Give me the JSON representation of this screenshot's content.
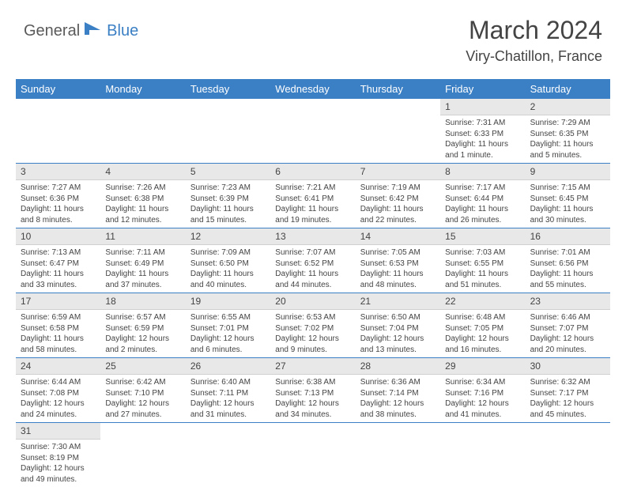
{
  "logo": {
    "part1": "General",
    "part2": "Blue"
  },
  "title": "March 2024",
  "location": "Viry-Chatillon, France",
  "dayNames": [
    "Sunday",
    "Monday",
    "Tuesday",
    "Wednesday",
    "Thursday",
    "Friday",
    "Saturday"
  ],
  "colors": {
    "headerBg": "#3b7fc4",
    "dayBg": "#e8e8e8",
    "ruleColor": "#3b7fc4",
    "text": "#444444",
    "logoGray": "#5a5a5a",
    "logoBlue": "#3b7fc4"
  },
  "weeks": [
    [
      {
        "n": "",
        "lines": []
      },
      {
        "n": "",
        "lines": []
      },
      {
        "n": "",
        "lines": []
      },
      {
        "n": "",
        "lines": []
      },
      {
        "n": "",
        "lines": []
      },
      {
        "n": "1",
        "lines": [
          "Sunrise: 7:31 AM",
          "Sunset: 6:33 PM",
          "Daylight: 11 hours",
          "and 1 minute."
        ]
      },
      {
        "n": "2",
        "lines": [
          "Sunrise: 7:29 AM",
          "Sunset: 6:35 PM",
          "Daylight: 11 hours",
          "and 5 minutes."
        ]
      }
    ],
    [
      {
        "n": "3",
        "lines": [
          "Sunrise: 7:27 AM",
          "Sunset: 6:36 PM",
          "Daylight: 11 hours",
          "and 8 minutes."
        ]
      },
      {
        "n": "4",
        "lines": [
          "Sunrise: 7:26 AM",
          "Sunset: 6:38 PM",
          "Daylight: 11 hours",
          "and 12 minutes."
        ]
      },
      {
        "n": "5",
        "lines": [
          "Sunrise: 7:23 AM",
          "Sunset: 6:39 PM",
          "Daylight: 11 hours",
          "and 15 minutes."
        ]
      },
      {
        "n": "6",
        "lines": [
          "Sunrise: 7:21 AM",
          "Sunset: 6:41 PM",
          "Daylight: 11 hours",
          "and 19 minutes."
        ]
      },
      {
        "n": "7",
        "lines": [
          "Sunrise: 7:19 AM",
          "Sunset: 6:42 PM",
          "Daylight: 11 hours",
          "and 22 minutes."
        ]
      },
      {
        "n": "8",
        "lines": [
          "Sunrise: 7:17 AM",
          "Sunset: 6:44 PM",
          "Daylight: 11 hours",
          "and 26 minutes."
        ]
      },
      {
        "n": "9",
        "lines": [
          "Sunrise: 7:15 AM",
          "Sunset: 6:45 PM",
          "Daylight: 11 hours",
          "and 30 minutes."
        ]
      }
    ],
    [
      {
        "n": "10",
        "lines": [
          "Sunrise: 7:13 AM",
          "Sunset: 6:47 PM",
          "Daylight: 11 hours",
          "and 33 minutes."
        ]
      },
      {
        "n": "11",
        "lines": [
          "Sunrise: 7:11 AM",
          "Sunset: 6:49 PM",
          "Daylight: 11 hours",
          "and 37 minutes."
        ]
      },
      {
        "n": "12",
        "lines": [
          "Sunrise: 7:09 AM",
          "Sunset: 6:50 PM",
          "Daylight: 11 hours",
          "and 40 minutes."
        ]
      },
      {
        "n": "13",
        "lines": [
          "Sunrise: 7:07 AM",
          "Sunset: 6:52 PM",
          "Daylight: 11 hours",
          "and 44 minutes."
        ]
      },
      {
        "n": "14",
        "lines": [
          "Sunrise: 7:05 AM",
          "Sunset: 6:53 PM",
          "Daylight: 11 hours",
          "and 48 minutes."
        ]
      },
      {
        "n": "15",
        "lines": [
          "Sunrise: 7:03 AM",
          "Sunset: 6:55 PM",
          "Daylight: 11 hours",
          "and 51 minutes."
        ]
      },
      {
        "n": "16",
        "lines": [
          "Sunrise: 7:01 AM",
          "Sunset: 6:56 PM",
          "Daylight: 11 hours",
          "and 55 minutes."
        ]
      }
    ],
    [
      {
        "n": "17",
        "lines": [
          "Sunrise: 6:59 AM",
          "Sunset: 6:58 PM",
          "Daylight: 11 hours",
          "and 58 minutes."
        ]
      },
      {
        "n": "18",
        "lines": [
          "Sunrise: 6:57 AM",
          "Sunset: 6:59 PM",
          "Daylight: 12 hours",
          "and 2 minutes."
        ]
      },
      {
        "n": "19",
        "lines": [
          "Sunrise: 6:55 AM",
          "Sunset: 7:01 PM",
          "Daylight: 12 hours",
          "and 6 minutes."
        ]
      },
      {
        "n": "20",
        "lines": [
          "Sunrise: 6:53 AM",
          "Sunset: 7:02 PM",
          "Daylight: 12 hours",
          "and 9 minutes."
        ]
      },
      {
        "n": "21",
        "lines": [
          "Sunrise: 6:50 AM",
          "Sunset: 7:04 PM",
          "Daylight: 12 hours",
          "and 13 minutes."
        ]
      },
      {
        "n": "22",
        "lines": [
          "Sunrise: 6:48 AM",
          "Sunset: 7:05 PM",
          "Daylight: 12 hours",
          "and 16 minutes."
        ]
      },
      {
        "n": "23",
        "lines": [
          "Sunrise: 6:46 AM",
          "Sunset: 7:07 PM",
          "Daylight: 12 hours",
          "and 20 minutes."
        ]
      }
    ],
    [
      {
        "n": "24",
        "lines": [
          "Sunrise: 6:44 AM",
          "Sunset: 7:08 PM",
          "Daylight: 12 hours",
          "and 24 minutes."
        ]
      },
      {
        "n": "25",
        "lines": [
          "Sunrise: 6:42 AM",
          "Sunset: 7:10 PM",
          "Daylight: 12 hours",
          "and 27 minutes."
        ]
      },
      {
        "n": "26",
        "lines": [
          "Sunrise: 6:40 AM",
          "Sunset: 7:11 PM",
          "Daylight: 12 hours",
          "and 31 minutes."
        ]
      },
      {
        "n": "27",
        "lines": [
          "Sunrise: 6:38 AM",
          "Sunset: 7:13 PM",
          "Daylight: 12 hours",
          "and 34 minutes."
        ]
      },
      {
        "n": "28",
        "lines": [
          "Sunrise: 6:36 AM",
          "Sunset: 7:14 PM",
          "Daylight: 12 hours",
          "and 38 minutes."
        ]
      },
      {
        "n": "29",
        "lines": [
          "Sunrise: 6:34 AM",
          "Sunset: 7:16 PM",
          "Daylight: 12 hours",
          "and 41 minutes."
        ]
      },
      {
        "n": "30",
        "lines": [
          "Sunrise: 6:32 AM",
          "Sunset: 7:17 PM",
          "Daylight: 12 hours",
          "and 45 minutes."
        ]
      }
    ],
    [
      {
        "n": "31",
        "lines": [
          "Sunrise: 7:30 AM",
          "Sunset: 8:19 PM",
          "Daylight: 12 hours",
          "and 49 minutes."
        ]
      },
      {
        "n": "",
        "lines": []
      },
      {
        "n": "",
        "lines": []
      },
      {
        "n": "",
        "lines": []
      },
      {
        "n": "",
        "lines": []
      },
      {
        "n": "",
        "lines": []
      },
      {
        "n": "",
        "lines": []
      }
    ]
  ]
}
